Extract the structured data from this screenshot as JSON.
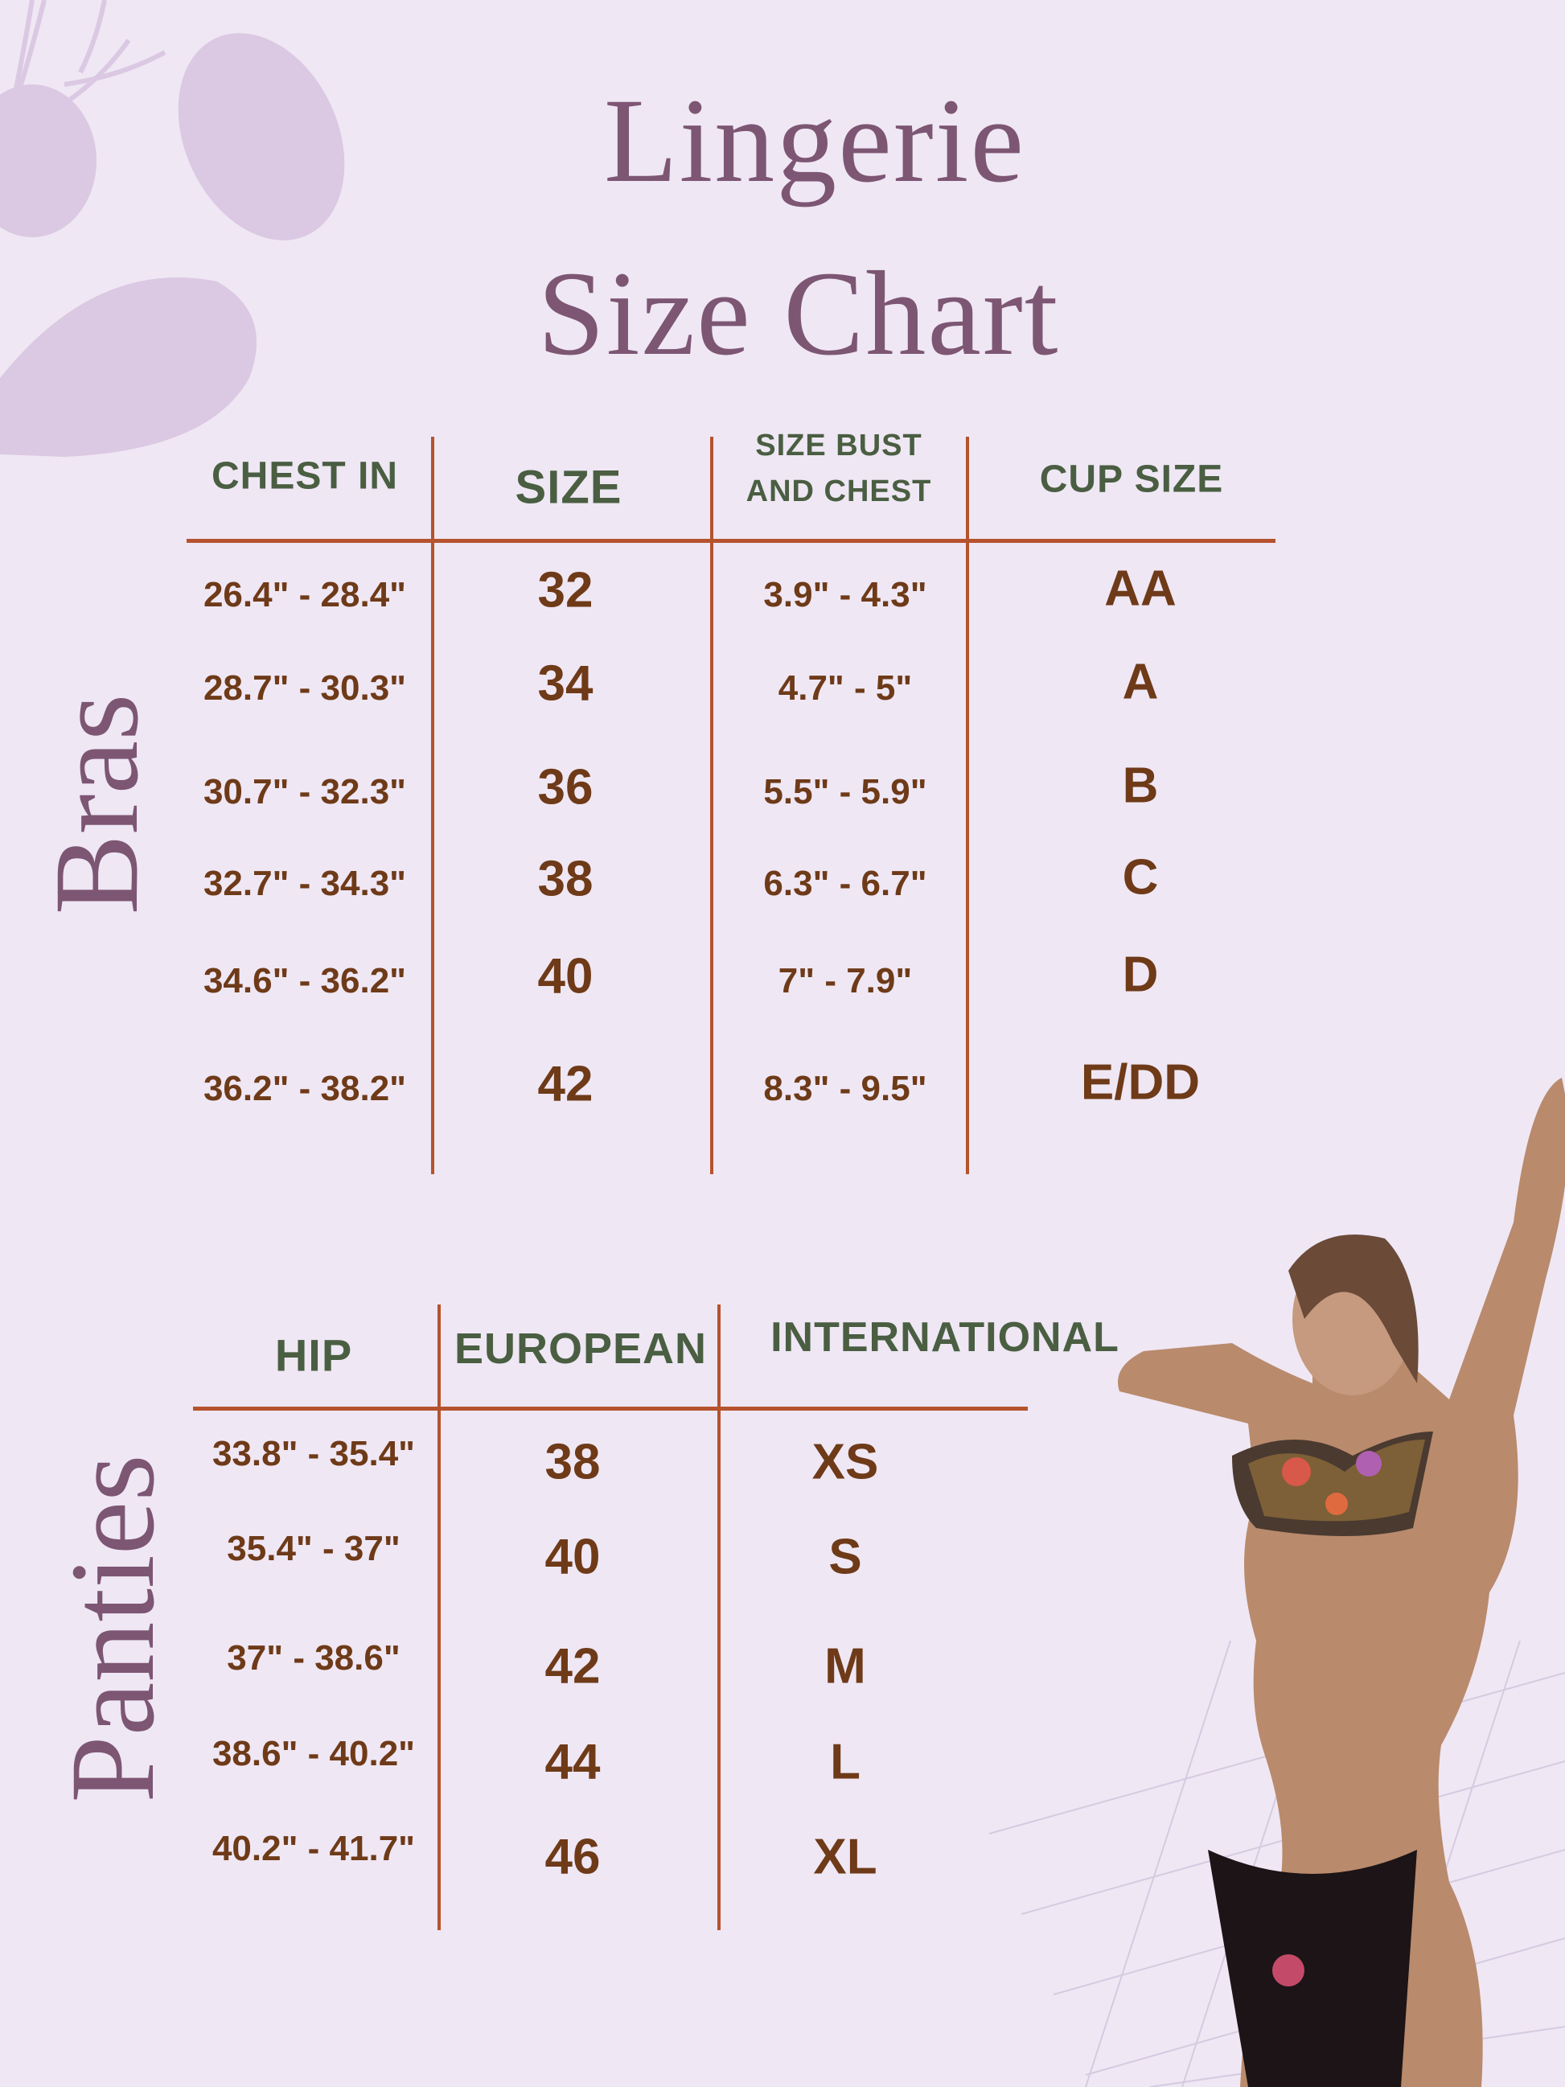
{
  "colors": {
    "background": "#efe7f4",
    "title": "#7d5674",
    "header": "#4a5e42",
    "value": "#6e3a18",
    "rule": "#b5532e",
    "leaf": "#dbc8e2"
  },
  "title": {
    "line1": "Lingerie",
    "line2": "Size Chart"
  },
  "bras": {
    "label": "Bras",
    "headers": [
      "CHEST IN",
      "SIZE",
      "SIZE BUST",
      "AND CHEST",
      "CUP SIZE"
    ],
    "rows": [
      {
        "chest": "26.4\" - 28.4\"",
        "size": "32",
        "bust": "3.9\" - 4.3\"",
        "cup": "AA"
      },
      {
        "chest": "28.7\" - 30.3\"",
        "size": "34",
        "bust": "4.7\" - 5\"",
        "cup": "A"
      },
      {
        "chest": "30.7\" - 32.3\"",
        "size": "36",
        "bust": "5.5\" - 5.9\"",
        "cup": "B"
      },
      {
        "chest": "32.7\" - 34.3\"",
        "size": "38",
        "bust": "6.3\" - 6.7\"",
        "cup": "C"
      },
      {
        "chest": "34.6\" - 36.2\"",
        "size": "40",
        "bust": "7\" - 7.9\"",
        "cup": "D"
      },
      {
        "chest": "36.2\" - 38.2\"",
        "size": "42",
        "bust": "8.3\" - 9.5\"",
        "cup": "E/DD"
      }
    ]
  },
  "panties": {
    "label": "Panties",
    "headers": [
      "HIP",
      "EUROPEAN",
      "INTERNATIONAL"
    ],
    "rows": [
      {
        "hip": "33.8\" - 35.4\"",
        "eu": "38",
        "intl": "XS"
      },
      {
        "hip": "35.4\" - 37\"",
        "eu": "40",
        "intl": "S"
      },
      {
        "hip": "37\" - 38.6\"",
        "eu": "42",
        "intl": "M"
      },
      {
        "hip": "38.6\" - 40.2\"",
        "eu": "44",
        "intl": "L"
      },
      {
        "hip": "40.2\" - 41.7\"",
        "eu": "46",
        "intl": "XL"
      }
    ]
  }
}
